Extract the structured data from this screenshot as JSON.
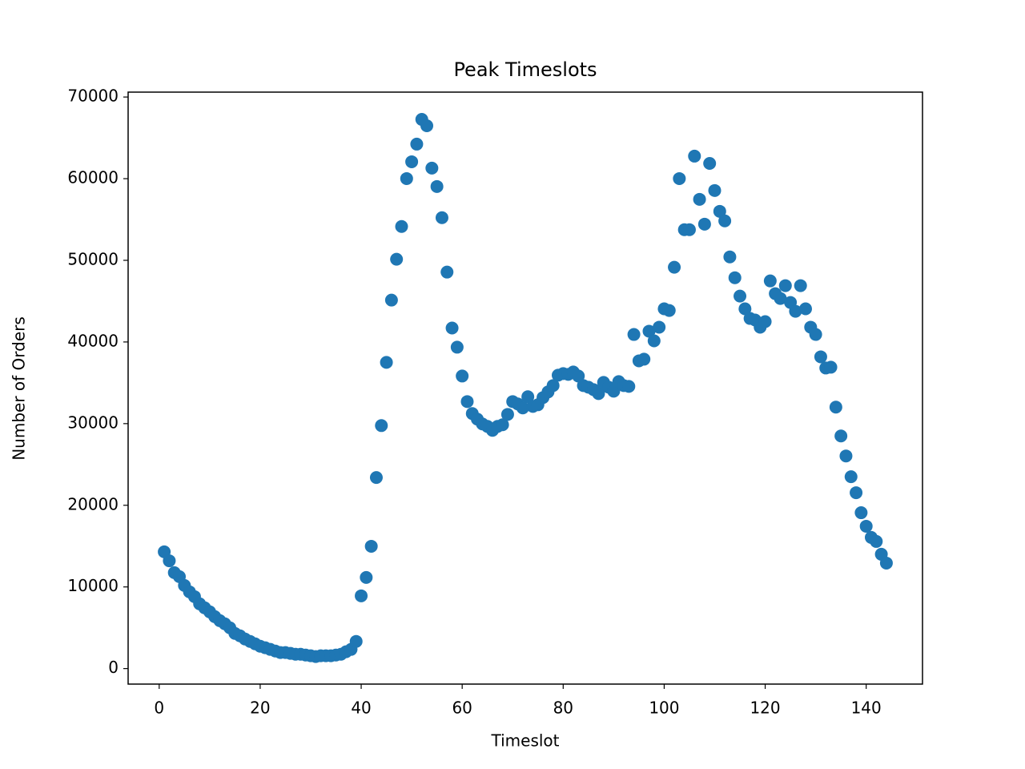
{
  "chart_data": {
    "type": "scatter",
    "title": "Peak Timeslots",
    "x_label": "Timeslot",
    "y_label": "Number of Orders",
    "color": "#1f77b4",
    "x": [
      1,
      2,
      3,
      4,
      5,
      6,
      7,
      8,
      9,
      10,
      11,
      12,
      13,
      14,
      15,
      16,
      17,
      18,
      19,
      20,
      21,
      22,
      23,
      24,
      25,
      26,
      27,
      28,
      29,
      30,
      31,
      32,
      33,
      34,
      35,
      36,
      37,
      38,
      39,
      40,
      41,
      42,
      43,
      44,
      45,
      46,
      47,
      48,
      49,
      50,
      51,
      52,
      53,
      54,
      55,
      56,
      57,
      58,
      59,
      60,
      61,
      62,
      63,
      64,
      65,
      66,
      67,
      68,
      69,
      70,
      71,
      72,
      73,
      74,
      75,
      76,
      77,
      78,
      79,
      80,
      81,
      82,
      83,
      84,
      85,
      86,
      87,
      88,
      89,
      90,
      91,
      92,
      93,
      94,
      95,
      96,
      97,
      98,
      99,
      100,
      101,
      102,
      103,
      104,
      105,
      106,
      107,
      108,
      109,
      110,
      111,
      112,
      113,
      114,
      115,
      116,
      117,
      118,
      119,
      120,
      121,
      122,
      123,
      124,
      125,
      126,
      127,
      128,
      129,
      130,
      131,
      132,
      133,
      134,
      135,
      136,
      137,
      138,
      139,
      140,
      141,
      142,
      143,
      144
    ],
    "values": [
      14300,
      13200,
      11750,
      11260,
      10180,
      9400,
      8810,
      7930,
      7440,
      6950,
      6360,
      5870,
      5480,
      4990,
      4310,
      4010,
      3620,
      3330,
      3030,
      2740,
      2550,
      2350,
      2150,
      1960,
      1960,
      1860,
      1760,
      1760,
      1660,
      1570,
      1470,
      1570,
      1570,
      1570,
      1660,
      1760,
      2060,
      2350,
      3330,
      8910,
      11160,
      14980,
      23400,
      29760,
      37500,
      45130,
      50130,
      54140,
      60010,
      62070,
      64230,
      67260,
      66480,
      61290,
      59040,
      55220,
      48560,
      41710,
      39360,
      35830,
      32700,
      31230,
      30550,
      29960,
      29660,
      29180,
      29660,
      29860,
      31130,
      32700,
      32410,
      31920,
      33290,
      32110,
      32310,
      33190,
      33880,
      34660,
      35930,
      36130,
      36030,
      36320,
      35830,
      34660,
      34460,
      34170,
      33680,
      35050,
      34460,
      33970,
      35150,
      34660,
      34560,
      40920,
      37690,
      37890,
      41320,
      40140,
      41810,
      44060,
      43860,
      49150,
      60010,
      53750,
      53750,
      62760,
      57470,
      54430,
      61870,
      58550,
      56000,
      54830,
      50420,
      47870,
      45620,
      44060,
      42880,
      42690,
      41810,
      42490,
      47480,
      45920,
      45330,
      46900,
      44840,
      43760,
      46900,
      44060,
      41810,
      40920,
      38180,
      36810,
      36910,
      32020,
      28490,
      26040,
      23500,
      21540,
      19090,
      17430,
      16060,
      15570,
      14000,
      12920
    ],
    "xlim": [
      -6.15,
      151.15
    ],
    "ylim": [
      -1900,
      70600
    ],
    "xticks": [
      0,
      20,
      40,
      60,
      80,
      100,
      120,
      140
    ],
    "yticks": [
      0,
      10000,
      20000,
      30000,
      40000,
      50000,
      60000,
      70000
    ]
  }
}
